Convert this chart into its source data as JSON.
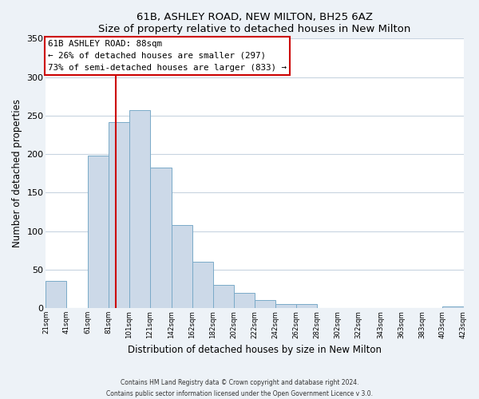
{
  "title": "61B, ASHLEY ROAD, NEW MILTON, BH25 6AZ",
  "subtitle": "Size of property relative to detached houses in New Milton",
  "xlabel": "Distribution of detached houses by size in New Milton",
  "ylabel": "Number of detached properties",
  "bar_color": "#ccd9e8",
  "bar_edge_color": "#7aaac8",
  "bar_left_edges": [
    21,
    41,
    61,
    81,
    101,
    121,
    142,
    162,
    182,
    202,
    222,
    242,
    262,
    282,
    302,
    322,
    343,
    363,
    383,
    403
  ],
  "bar_widths": [
    20,
    20,
    20,
    20,
    20,
    21,
    20,
    20,
    20,
    20,
    20,
    20,
    20,
    20,
    20,
    21,
    20,
    20,
    20,
    20
  ],
  "bar_heights": [
    35,
    0,
    198,
    241,
    257,
    182,
    108,
    60,
    30,
    20,
    10,
    5,
    5,
    0,
    0,
    0,
    0,
    0,
    0,
    2
  ],
  "tick_labels": [
    "21sqm",
    "41sqm",
    "61sqm",
    "81sqm",
    "101sqm",
    "121sqm",
    "142sqm",
    "162sqm",
    "182sqm",
    "202sqm",
    "222sqm",
    "242sqm",
    "262sqm",
    "282sqm",
    "302sqm",
    "322sqm",
    "343sqm",
    "363sqm",
    "383sqm",
    "403sqm",
    "423sqm"
  ],
  "ylim": [
    0,
    350
  ],
  "yticks": [
    0,
    50,
    100,
    150,
    200,
    250,
    300,
    350
  ],
  "property_line_x": 88,
  "annotation_line1": "61B ASHLEY ROAD: 88sqm",
  "annotation_line2": "← 26% of detached houses are smaller (297)",
  "annotation_line3": "73% of semi-detached houses are larger (833) →",
  "vline_color": "#cc0000",
  "annotation_box_facecolor": "#ffffff",
  "annotation_box_edgecolor": "#cc0000",
  "footer_line1": "Contains HM Land Registry data © Crown copyright and database right 2024.",
  "footer_line2": "Contains public sector information licensed under the Open Government Licence v 3.0.",
  "background_color": "#edf2f7",
  "plot_bg_color": "#ffffff",
  "grid_color": "#c8d4e0"
}
